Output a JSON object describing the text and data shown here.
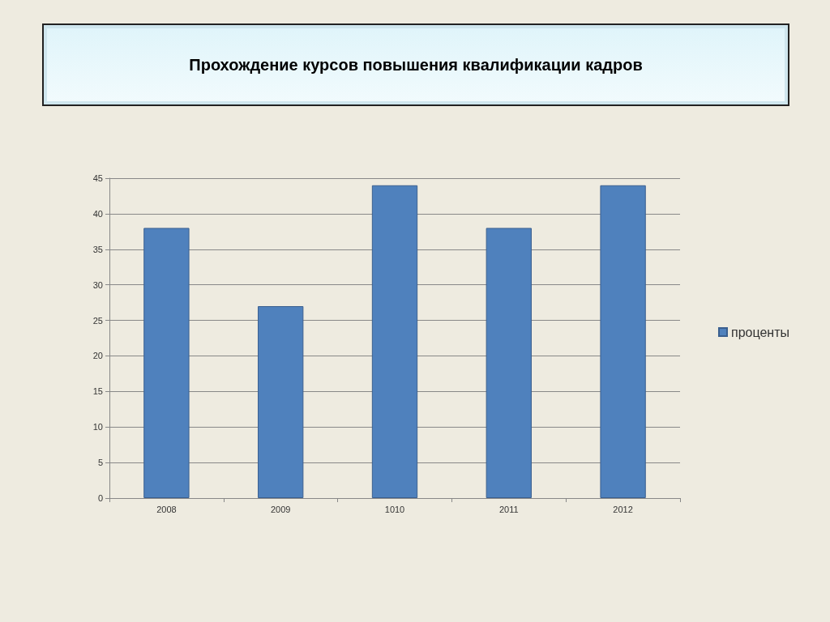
{
  "chart_data": {
    "type": "bar",
    "title": "Прохождение курсов повышения квалификации кадров",
    "categories": [
      "2008",
      "2009",
      "1010",
      "2011",
      "2012"
    ],
    "series": [
      {
        "name": "проценты",
        "color": "#4f81bd",
        "values": [
          38,
          27,
          44,
          38,
          44
        ]
      }
    ],
    "ylim": [
      0,
      45
    ],
    "yticks": [
      0,
      5,
      10,
      15,
      20,
      25,
      30,
      35,
      40,
      45
    ],
    "grid": "y",
    "legend": "right"
  }
}
